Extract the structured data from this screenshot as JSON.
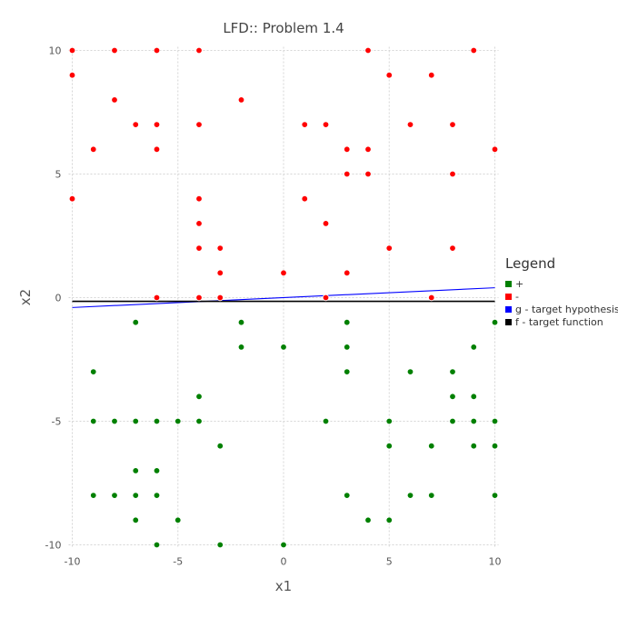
{
  "chart_data": {
    "type": "scatter",
    "title": "LFD:: Problem 1.4",
    "xlabel": "x1",
    "ylabel": "x2",
    "xlim": [
      -10,
      10
    ],
    "ylim": [
      -10,
      10
    ],
    "xticks": [
      "-10",
      "-5",
      "0",
      "5",
      "10"
    ],
    "yticks": [
      "-10",
      "-5",
      "0",
      "5",
      "10"
    ],
    "grid": true,
    "legend": {
      "title": "Legend",
      "placement": "right",
      "entries": [
        {
          "label": "+",
          "color": "#008000"
        },
        {
          "label": "-",
          "color": "#ff0000"
        },
        {
          "label": "g - target hypothesis",
          "color": "#0000ff"
        },
        {
          "label": "f - target function",
          "color": "#000000"
        }
      ]
    },
    "series": [
      {
        "name": "+",
        "color": "#008000",
        "points": [
          [
            -7,
            -1
          ],
          [
            -2,
            -1
          ],
          [
            3,
            -1
          ],
          [
            10,
            -1
          ],
          [
            -2,
            -2
          ],
          [
            0,
            -2
          ],
          [
            3,
            -2
          ],
          [
            9,
            -2
          ],
          [
            -9,
            -3
          ],
          [
            3,
            -3
          ],
          [
            6,
            -3
          ],
          [
            8,
            -3
          ],
          [
            -4,
            -4
          ],
          [
            8,
            -4
          ],
          [
            9,
            -4
          ],
          [
            -9,
            -5
          ],
          [
            -8,
            -5
          ],
          [
            -7,
            -5
          ],
          [
            -6,
            -5
          ],
          [
            -5,
            -5
          ],
          [
            -4,
            -5
          ],
          [
            2,
            -5
          ],
          [
            5,
            -5
          ],
          [
            8,
            -5
          ],
          [
            9,
            -5
          ],
          [
            10,
            -5
          ],
          [
            -3,
            -6
          ],
          [
            5,
            -6
          ],
          [
            7,
            -6
          ],
          [
            9,
            -6
          ],
          [
            10,
            -6
          ],
          [
            -7,
            -7
          ],
          [
            -6,
            -7
          ],
          [
            -9,
            -8
          ],
          [
            -8,
            -8
          ],
          [
            -7,
            -8
          ],
          [
            -6,
            -8
          ],
          [
            3,
            -8
          ],
          [
            6,
            -8
          ],
          [
            7,
            -8
          ],
          [
            10,
            -8
          ],
          [
            -7,
            -9
          ],
          [
            -5,
            -9
          ],
          [
            4,
            -9
          ],
          [
            5,
            -9
          ],
          [
            -6,
            -10
          ],
          [
            -3,
            -10
          ],
          [
            0,
            -10
          ]
        ]
      },
      {
        "name": "-",
        "color": "#ff0000",
        "points": [
          [
            -10,
            10
          ],
          [
            -8,
            10
          ],
          [
            -6,
            10
          ],
          [
            -4,
            10
          ],
          [
            4,
            10
          ],
          [
            9,
            10
          ],
          [
            -10,
            9
          ],
          [
            5,
            9
          ],
          [
            7,
            9
          ],
          [
            -8,
            8
          ],
          [
            -2,
            8
          ],
          [
            -7,
            7
          ],
          [
            -6,
            7
          ],
          [
            -4,
            7
          ],
          [
            1,
            7
          ],
          [
            2,
            7
          ],
          [
            6,
            7
          ],
          [
            8,
            7
          ],
          [
            -9,
            6
          ],
          [
            -6,
            6
          ],
          [
            3,
            6
          ],
          [
            4,
            6
          ],
          [
            10,
            6
          ],
          [
            3,
            5
          ],
          [
            4,
            5
          ],
          [
            8,
            5
          ],
          [
            -10,
            4
          ],
          [
            -4,
            4
          ],
          [
            1,
            4
          ],
          [
            -4,
            3
          ],
          [
            2,
            3
          ],
          [
            -4,
            2
          ],
          [
            -3,
            2
          ],
          [
            5,
            2
          ],
          [
            8,
            2
          ],
          [
            -3,
            1
          ],
          [
            0,
            1
          ],
          [
            3,
            1
          ],
          [
            -6,
            0
          ],
          [
            -4,
            0
          ],
          [
            -3,
            0
          ],
          [
            2,
            0
          ],
          [
            7,
            0
          ]
        ]
      }
    ],
    "lines": [
      {
        "name": "g - target hypothesis",
        "color": "#0000ff",
        "x": [
          -10,
          10
        ],
        "y": [
          -0.4,
          0.4
        ]
      },
      {
        "name": "f - target function",
        "color": "#000000",
        "x": [
          -10,
          10
        ],
        "y": [
          -0.15,
          -0.15
        ]
      }
    ]
  }
}
